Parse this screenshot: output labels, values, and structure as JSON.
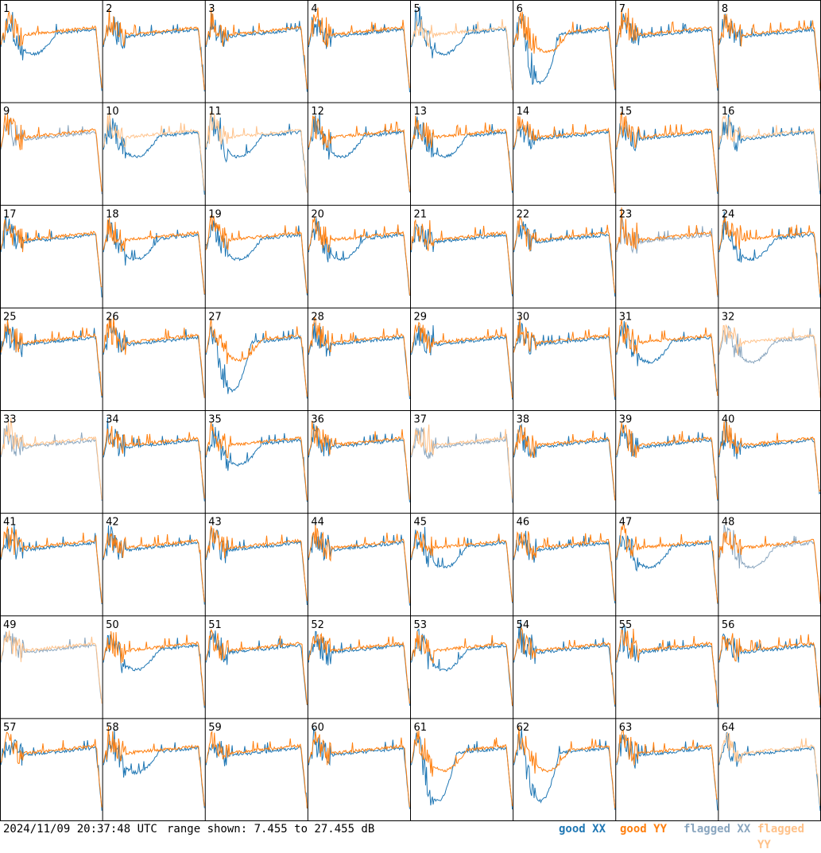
{
  "footer": {
    "timestamp": "2024/11/09 20:37:48 UTC",
    "range_text": "range shown: 7.455 to 27.455 dB",
    "legend": {
      "good_xx": "good XX",
      "good_yy": "good YY",
      "flagged_xx": "flagged XX",
      "flagged_yy": "flagged YY"
    }
  },
  "colors": {
    "good_xx": "#1f77b4",
    "good_yy": "#ff7f0e",
    "flagged_xx": "#8aa6bf",
    "flagged_yy": "#ffc28a",
    "grid_line": "#000000",
    "background": "#ffffff"
  },
  "chart_data": {
    "type": "line",
    "layout": "8x8 small multiples",
    "range_db": [
      7.455,
      27.455
    ],
    "tiles": [
      {
        "id": "1",
        "xx": "good",
        "yy": "good",
        "shape": "dip"
      },
      {
        "id": "2",
        "xx": "good",
        "yy": "good",
        "shape": "normal"
      },
      {
        "id": "3",
        "xx": "good",
        "yy": "good",
        "shape": "normal"
      },
      {
        "id": "4",
        "xx": "good",
        "yy": "good",
        "shape": "normal"
      },
      {
        "id": "5",
        "xx": "good",
        "yy": "flagged",
        "shape": "dip"
      },
      {
        "id": "6",
        "xx": "good",
        "yy": "good",
        "shape": "deepdip"
      },
      {
        "id": "7",
        "xx": "good",
        "yy": "good",
        "shape": "normal"
      },
      {
        "id": "8",
        "xx": "good",
        "yy": "good",
        "shape": "normal"
      },
      {
        "id": "9",
        "xx": "flagged",
        "yy": "good",
        "shape": "normal"
      },
      {
        "id": "10",
        "xx": "good",
        "yy": "flagged",
        "shape": "dip"
      },
      {
        "id": "11",
        "xx": "good",
        "yy": "flagged",
        "shape": "dip"
      },
      {
        "id": "12",
        "xx": "good",
        "yy": "good",
        "shape": "dip"
      },
      {
        "id": "13",
        "xx": "good",
        "yy": "good",
        "shape": "dip"
      },
      {
        "id": "14",
        "xx": "good",
        "yy": "good",
        "shape": "normal"
      },
      {
        "id": "15",
        "xx": "good",
        "yy": "good",
        "shape": "normal"
      },
      {
        "id": "16",
        "xx": "good",
        "yy": "flagged",
        "shape": "normal"
      },
      {
        "id": "17",
        "xx": "good",
        "yy": "good",
        "shape": "normal"
      },
      {
        "id": "18",
        "xx": "good",
        "yy": "good",
        "shape": "dip"
      },
      {
        "id": "19",
        "xx": "good",
        "yy": "good",
        "shape": "dip"
      },
      {
        "id": "20",
        "xx": "good",
        "yy": "good",
        "shape": "dip"
      },
      {
        "id": "21",
        "xx": "good",
        "yy": "good",
        "shape": "normal"
      },
      {
        "id": "22",
        "xx": "good",
        "yy": "good",
        "shape": "normal"
      },
      {
        "id": "23",
        "xx": "flagged",
        "yy": "good",
        "shape": "normal"
      },
      {
        "id": "24",
        "xx": "good",
        "yy": "good",
        "shape": "dip"
      },
      {
        "id": "25",
        "xx": "good",
        "yy": "good",
        "shape": "normal"
      },
      {
        "id": "26",
        "xx": "good",
        "yy": "good",
        "shape": "normal"
      },
      {
        "id": "27",
        "xx": "good",
        "yy": "good",
        "shape": "deepdip"
      },
      {
        "id": "28",
        "xx": "good",
        "yy": "good",
        "shape": "normal"
      },
      {
        "id": "29",
        "xx": "good",
        "yy": "good",
        "shape": "normal"
      },
      {
        "id": "30",
        "xx": "good",
        "yy": "good",
        "shape": "normal"
      },
      {
        "id": "31",
        "xx": "good",
        "yy": "good",
        "shape": "dip"
      },
      {
        "id": "32",
        "xx": "flagged",
        "yy": "flagged",
        "shape": "dip"
      },
      {
        "id": "33",
        "xx": "flagged",
        "yy": "flagged",
        "shape": "normal"
      },
      {
        "id": "34",
        "xx": "good",
        "yy": "good",
        "shape": "normal"
      },
      {
        "id": "35",
        "xx": "good",
        "yy": "good",
        "shape": "dip"
      },
      {
        "id": "36",
        "xx": "good",
        "yy": "good",
        "shape": "normal"
      },
      {
        "id": "37",
        "xx": "flagged",
        "yy": "flagged",
        "shape": "normal"
      },
      {
        "id": "38",
        "xx": "good",
        "yy": "good",
        "shape": "normal"
      },
      {
        "id": "39",
        "xx": "good",
        "yy": "good",
        "shape": "normal"
      },
      {
        "id": "40",
        "xx": "good",
        "yy": "good",
        "shape": "normal"
      },
      {
        "id": "41",
        "xx": "good",
        "yy": "good",
        "shape": "normal"
      },
      {
        "id": "42",
        "xx": "good",
        "yy": "good",
        "shape": "normal"
      },
      {
        "id": "43",
        "xx": "good",
        "yy": "good",
        "shape": "normal"
      },
      {
        "id": "44",
        "xx": "good",
        "yy": "good",
        "shape": "normal"
      },
      {
        "id": "45",
        "xx": "good",
        "yy": "good",
        "shape": "dip"
      },
      {
        "id": "46",
        "xx": "good",
        "yy": "good",
        "shape": "normal"
      },
      {
        "id": "47",
        "xx": "good",
        "yy": "good",
        "shape": "dip"
      },
      {
        "id": "48",
        "xx": "flagged",
        "yy": "good",
        "shape": "dip"
      },
      {
        "id": "49",
        "xx": "flagged",
        "yy": "flagged",
        "shape": "normal"
      },
      {
        "id": "50",
        "xx": "good",
        "yy": "good",
        "shape": "dip"
      },
      {
        "id": "51",
        "xx": "good",
        "yy": "good",
        "shape": "normal"
      },
      {
        "id": "52",
        "xx": "good",
        "yy": "good",
        "shape": "normal"
      },
      {
        "id": "53",
        "xx": "good",
        "yy": "good",
        "shape": "dip"
      },
      {
        "id": "54",
        "xx": "good",
        "yy": "good",
        "shape": "normal"
      },
      {
        "id": "55",
        "xx": "good",
        "yy": "good",
        "shape": "normal"
      },
      {
        "id": "56",
        "xx": "good",
        "yy": "good",
        "shape": "normal"
      },
      {
        "id": "57",
        "xx": "good",
        "yy": "good",
        "shape": "normal"
      },
      {
        "id": "58",
        "xx": "good",
        "yy": "good",
        "shape": "dip"
      },
      {
        "id": "59",
        "xx": "good",
        "yy": "good",
        "shape": "normal"
      },
      {
        "id": "60",
        "xx": "good",
        "yy": "good",
        "shape": "normal"
      },
      {
        "id": "61",
        "xx": "good",
        "yy": "good",
        "shape": "deepdip"
      },
      {
        "id": "62",
        "xx": "good",
        "yy": "good",
        "shape": "deepdip"
      },
      {
        "id": "63",
        "xx": "good",
        "yy": "good",
        "shape": "normal"
      },
      {
        "id": "64",
        "xx": "good",
        "yy": "flagged",
        "shape": "normal"
      }
    ]
  }
}
